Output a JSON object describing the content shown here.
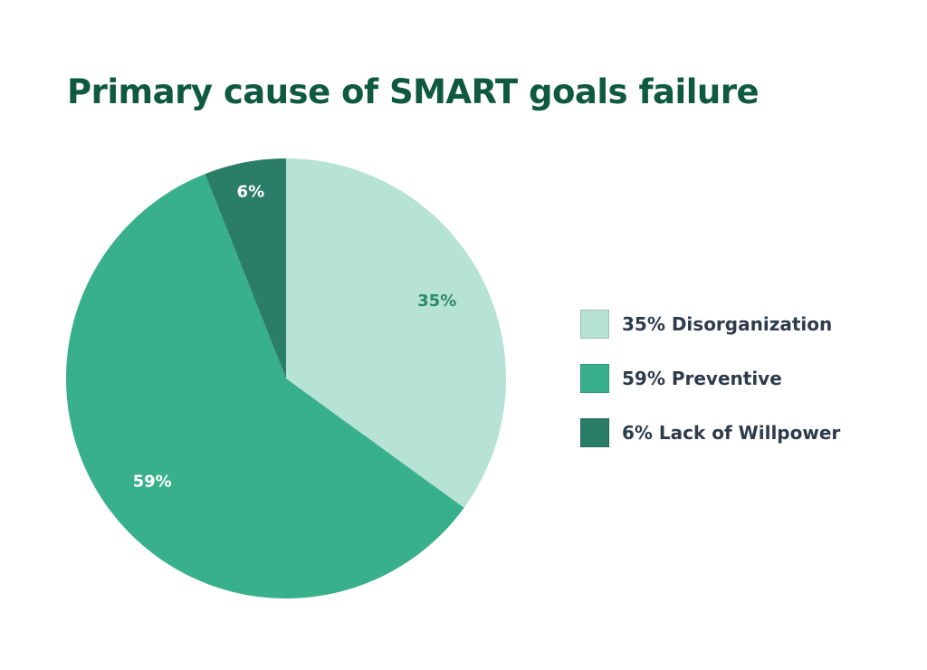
{
  "chart_data": {
    "type": "pie",
    "title": "Primary cause of SMART goals failure",
    "slices": [
      {
        "label": "35%",
        "legend": "35% Disorganization",
        "value": 35,
        "color": "#b7e2d6",
        "label_color": "#2a8a6a"
      },
      {
        "label": "59%",
        "legend": "59% Preventive",
        "value": 59,
        "color": "#38b08b",
        "label_color": "#ffffff"
      },
      {
        "label": "6%",
        "legend": "6% Lack of Willpower",
        "value": 6,
        "color": "#2a7d66",
        "label_color": "#ffffff"
      }
    ],
    "start": "top",
    "direction": "clockwise",
    "legend_position": "right"
  }
}
